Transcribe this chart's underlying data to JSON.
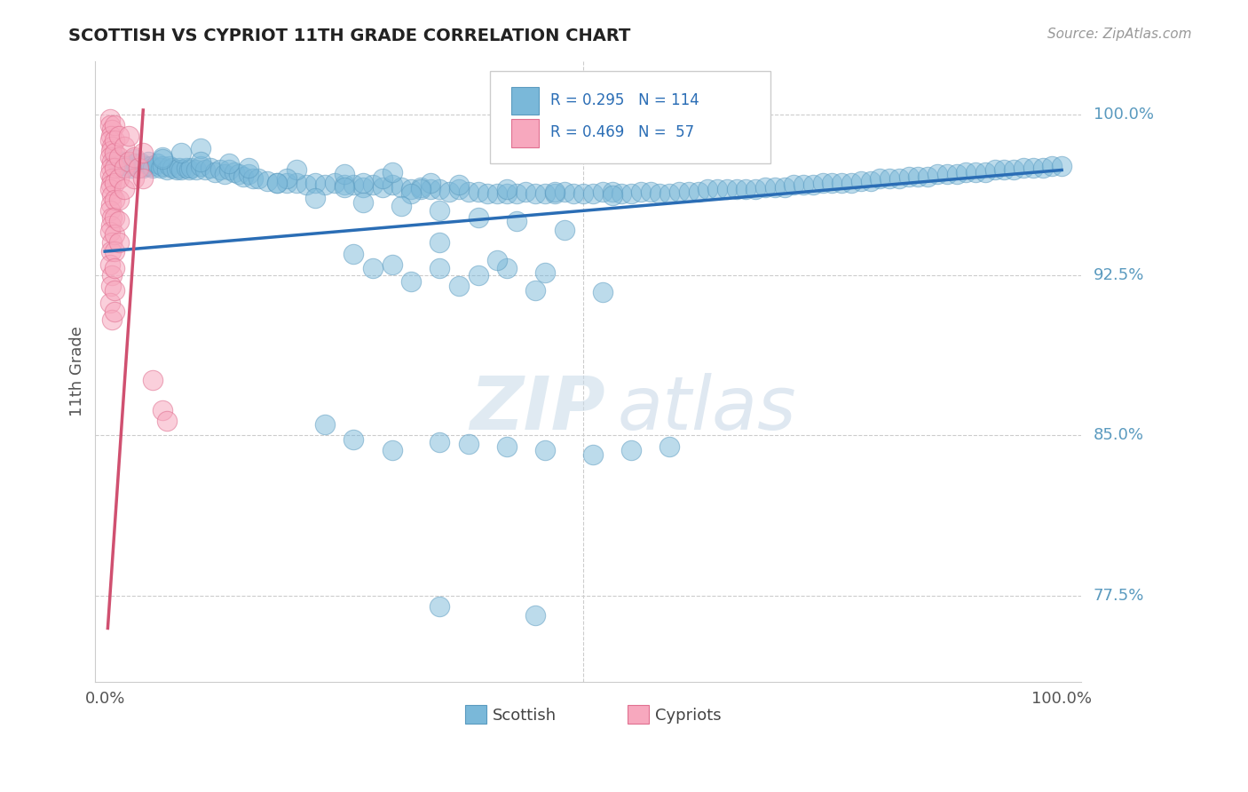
{
  "title": "SCOTTISH VS CYPRIOT 11TH GRADE CORRELATION CHART",
  "source": "Source: ZipAtlas.com",
  "ylabel": "11th Grade",
  "ytick_labels": [
    "77.5%",
    "85.0%",
    "92.5%",
    "100.0%"
  ],
  "ytick_values": [
    0.775,
    0.85,
    0.925,
    1.0
  ],
  "xlim": [
    -0.01,
    1.02
  ],
  "ylim": [
    0.735,
    1.025
  ],
  "watermark_zip": "ZIP",
  "watermark_atlas": "atlas",
  "scottish_color": "#7ab8d9",
  "scottish_edge": "#5a9abf",
  "cypriot_color": "#f7a8be",
  "cypriot_edge": "#e07090",
  "trendline_color": "#2a6db5",
  "cypriot_trendline_color": "#d05070",
  "background_color": "#ffffff",
  "grid_color": "#cccccc",
  "ytick_color": "#5a9abf",
  "xtick_color": "#555555",
  "title_color": "#222222",
  "source_color": "#999999",
  "ylabel_color": "#555555",
  "legend_text_color": "#333333",
  "legend_r_color": "#2a6db5",
  "scottish_points": [
    [
      0.01,
      0.98
    ],
    [
      0.012,
      0.978
    ],
    [
      0.015,
      0.976
    ],
    [
      0.018,
      0.975
    ],
    [
      0.02,
      0.978
    ],
    [
      0.022,
      0.976
    ],
    [
      0.025,
      0.977
    ],
    [
      0.028,
      0.975
    ],
    [
      0.03,
      0.979
    ],
    [
      0.032,
      0.977
    ],
    [
      0.035,
      0.975
    ],
    [
      0.038,
      0.977
    ],
    [
      0.04,
      0.975
    ],
    [
      0.042,
      0.976
    ],
    [
      0.045,
      0.978
    ],
    [
      0.048,
      0.976
    ],
    [
      0.05,
      0.975
    ],
    [
      0.055,
      0.977
    ],
    [
      0.058,
      0.975
    ],
    [
      0.06,
      0.976
    ],
    [
      0.065,
      0.974
    ],
    [
      0.068,
      0.976
    ],
    [
      0.07,
      0.975
    ],
    [
      0.075,
      0.974
    ],
    [
      0.078,
      0.975
    ],
    [
      0.08,
      0.974
    ],
    [
      0.085,
      0.975
    ],
    [
      0.088,
      0.974
    ],
    [
      0.09,
      0.975
    ],
    [
      0.095,
      0.974
    ],
    [
      0.1,
      0.976
    ],
    [
      0.105,
      0.974
    ],
    [
      0.11,
      0.975
    ],
    [
      0.115,
      0.973
    ],
    [
      0.12,
      0.974
    ],
    [
      0.125,
      0.972
    ],
    [
      0.13,
      0.974
    ],
    [
      0.135,
      0.973
    ],
    [
      0.14,
      0.972
    ],
    [
      0.145,
      0.971
    ],
    [
      0.15,
      0.972
    ],
    [
      0.155,
      0.97
    ],
    [
      0.16,
      0.97
    ],
    [
      0.17,
      0.969
    ],
    [
      0.18,
      0.968
    ],
    [
      0.19,
      0.968
    ],
    [
      0.2,
      0.968
    ],
    [
      0.21,
      0.967
    ],
    [
      0.22,
      0.968
    ],
    [
      0.23,
      0.967
    ],
    [
      0.24,
      0.968
    ],
    [
      0.25,
      0.967
    ],
    [
      0.26,
      0.967
    ],
    [
      0.27,
      0.966
    ],
    [
      0.28,
      0.967
    ],
    [
      0.29,
      0.966
    ],
    [
      0.3,
      0.967
    ],
    [
      0.31,
      0.966
    ],
    [
      0.32,
      0.965
    ],
    [
      0.33,
      0.966
    ],
    [
      0.34,
      0.965
    ],
    [
      0.35,
      0.965
    ],
    [
      0.36,
      0.964
    ],
    [
      0.37,
      0.965
    ],
    [
      0.38,
      0.964
    ],
    [
      0.39,
      0.964
    ],
    [
      0.4,
      0.963
    ],
    [
      0.41,
      0.963
    ],
    [
      0.42,
      0.963
    ],
    [
      0.43,
      0.963
    ],
    [
      0.44,
      0.964
    ],
    [
      0.45,
      0.963
    ],
    [
      0.46,
      0.963
    ],
    [
      0.47,
      0.963
    ],
    [
      0.48,
      0.964
    ],
    [
      0.49,
      0.963
    ],
    [
      0.5,
      0.963
    ],
    [
      0.51,
      0.963
    ],
    [
      0.52,
      0.964
    ],
    [
      0.53,
      0.964
    ],
    [
      0.54,
      0.963
    ],
    [
      0.55,
      0.963
    ],
    [
      0.56,
      0.964
    ],
    [
      0.57,
      0.964
    ],
    [
      0.58,
      0.963
    ],
    [
      0.59,
      0.963
    ],
    [
      0.6,
      0.964
    ],
    [
      0.61,
      0.964
    ],
    [
      0.62,
      0.964
    ],
    [
      0.63,
      0.965
    ],
    [
      0.64,
      0.965
    ],
    [
      0.65,
      0.965
    ],
    [
      0.66,
      0.965
    ],
    [
      0.67,
      0.965
    ],
    [
      0.68,
      0.965
    ],
    [
      0.69,
      0.966
    ],
    [
      0.7,
      0.966
    ],
    [
      0.71,
      0.966
    ],
    [
      0.72,
      0.967
    ],
    [
      0.73,
      0.967
    ],
    [
      0.74,
      0.967
    ],
    [
      0.75,
      0.968
    ],
    [
      0.76,
      0.968
    ],
    [
      0.77,
      0.968
    ],
    [
      0.78,
      0.968
    ],
    [
      0.79,
      0.969
    ],
    [
      0.8,
      0.969
    ],
    [
      0.81,
      0.97
    ],
    [
      0.82,
      0.97
    ],
    [
      0.83,
      0.97
    ],
    [
      0.84,
      0.971
    ],
    [
      0.85,
      0.971
    ],
    [
      0.86,
      0.971
    ],
    [
      0.87,
      0.972
    ],
    [
      0.88,
      0.972
    ],
    [
      0.89,
      0.972
    ],
    [
      0.9,
      0.973
    ],
    [
      0.91,
      0.973
    ],
    [
      0.92,
      0.973
    ],
    [
      0.93,
      0.974
    ],
    [
      0.94,
      0.974
    ],
    [
      0.95,
      0.974
    ],
    [
      0.96,
      0.975
    ],
    [
      0.97,
      0.975
    ],
    [
      0.98,
      0.975
    ],
    [
      0.99,
      0.976
    ],
    [
      1.0,
      0.976
    ],
    [
      0.06,
      0.98
    ],
    [
      0.08,
      0.982
    ],
    [
      0.1,
      0.984
    ],
    [
      0.06,
      0.979
    ],
    [
      0.1,
      0.978
    ],
    [
      0.13,
      0.977
    ],
    [
      0.15,
      0.975
    ],
    [
      0.2,
      0.974
    ],
    [
      0.25,
      0.972
    ],
    [
      0.29,
      0.97
    ],
    [
      0.34,
      0.968
    ],
    [
      0.3,
      0.973
    ],
    [
      0.37,
      0.967
    ],
    [
      0.42,
      0.965
    ],
    [
      0.47,
      0.964
    ],
    [
      0.53,
      0.962
    ],
    [
      0.33,
      0.965
    ],
    [
      0.27,
      0.968
    ],
    [
      0.19,
      0.97
    ],
    [
      0.25,
      0.966
    ],
    [
      0.32,
      0.963
    ],
    [
      0.18,
      0.968
    ],
    [
      0.22,
      0.961
    ],
    [
      0.27,
      0.959
    ],
    [
      0.31,
      0.957
    ],
    [
      0.35,
      0.955
    ],
    [
      0.39,
      0.952
    ],
    [
      0.43,
      0.95
    ],
    [
      0.48,
      0.946
    ],
    [
      0.3,
      0.93
    ],
    [
      0.35,
      0.928
    ],
    [
      0.39,
      0.925
    ],
    [
      0.42,
      0.928
    ],
    [
      0.46,
      0.926
    ],
    [
      0.28,
      0.928
    ],
    [
      0.32,
      0.922
    ],
    [
      0.37,
      0.92
    ],
    [
      0.45,
      0.918
    ],
    [
      0.52,
      0.917
    ],
    [
      0.26,
      0.935
    ],
    [
      0.35,
      0.94
    ],
    [
      0.41,
      0.932
    ],
    [
      0.23,
      0.855
    ],
    [
      0.26,
      0.848
    ],
    [
      0.3,
      0.843
    ],
    [
      0.35,
      0.847
    ],
    [
      0.38,
      0.846
    ],
    [
      0.42,
      0.845
    ],
    [
      0.46,
      0.843
    ],
    [
      0.51,
      0.841
    ],
    [
      0.55,
      0.843
    ],
    [
      0.59,
      0.845
    ],
    [
      0.35,
      0.77
    ],
    [
      0.45,
      0.766
    ]
  ],
  "cypriot_points": [
    [
      0.005,
      0.998
    ],
    [
      0.005,
      0.995
    ],
    [
      0.007,
      0.993
    ],
    [
      0.006,
      0.99
    ],
    [
      0.005,
      0.988
    ],
    [
      0.007,
      0.985
    ],
    [
      0.006,
      0.983
    ],
    [
      0.005,
      0.98
    ],
    [
      0.007,
      0.978
    ],
    [
      0.006,
      0.975
    ],
    [
      0.005,
      0.972
    ],
    [
      0.007,
      0.97
    ],
    [
      0.006,
      0.967
    ],
    [
      0.005,
      0.965
    ],
    [
      0.007,
      0.962
    ],
    [
      0.006,
      0.958
    ],
    [
      0.005,
      0.955
    ],
    [
      0.007,
      0.952
    ],
    [
      0.006,
      0.948
    ],
    [
      0.005,
      0.945
    ],
    [
      0.007,
      0.94
    ],
    [
      0.006,
      0.936
    ],
    [
      0.005,
      0.93
    ],
    [
      0.007,
      0.925
    ],
    [
      0.006,
      0.92
    ],
    [
      0.005,
      0.912
    ],
    [
      0.007,
      0.904
    ],
    [
      0.01,
      0.995
    ],
    [
      0.01,
      0.988
    ],
    [
      0.01,
      0.982
    ],
    [
      0.01,
      0.975
    ],
    [
      0.01,
      0.968
    ],
    [
      0.01,
      0.96
    ],
    [
      0.01,
      0.952
    ],
    [
      0.01,
      0.944
    ],
    [
      0.01,
      0.936
    ],
    [
      0.01,
      0.928
    ],
    [
      0.01,
      0.918
    ],
    [
      0.01,
      0.908
    ],
    [
      0.015,
      0.99
    ],
    [
      0.015,
      0.98
    ],
    [
      0.015,
      0.97
    ],
    [
      0.015,
      0.96
    ],
    [
      0.015,
      0.95
    ],
    [
      0.015,
      0.94
    ],
    [
      0.02,
      0.985
    ],
    [
      0.02,
      0.975
    ],
    [
      0.02,
      0.965
    ],
    [
      0.025,
      0.99
    ],
    [
      0.025,
      0.978
    ],
    [
      0.03,
      0.98
    ],
    [
      0.03,
      0.97
    ],
    [
      0.035,
      0.975
    ],
    [
      0.04,
      0.982
    ],
    [
      0.04,
      0.97
    ],
    [
      0.05,
      0.876
    ],
    [
      0.06,
      0.862
    ],
    [
      0.065,
      0.857
    ]
  ],
  "trendline_scottish": [
    [
      0.0,
      0.936
    ],
    [
      1.0,
      0.974
    ]
  ],
  "trendline_cypriot": [
    [
      0.003,
      0.76
    ],
    [
      0.04,
      1.002
    ]
  ]
}
